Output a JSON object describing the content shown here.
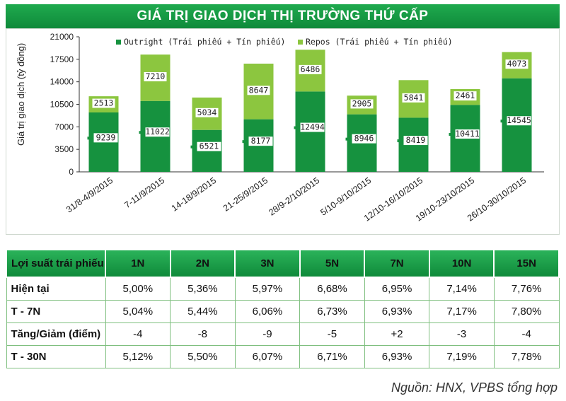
{
  "title": "GIÁ TRỊ GIAO DỊCH THỊ TRƯỜNG THỨ CẤP",
  "colors": {
    "outright": "#16923f",
    "repos": "#8cc63f",
    "title_bg": "#1aa24a",
    "header_bg": "#1e9c47"
  },
  "chart_data": {
    "type": "bar",
    "stacked": true,
    "ylabel": "Giá trị giao dịch (tỷ đồng)",
    "ylim": [
      0,
      21000
    ],
    "yticks": [
      0,
      3500,
      7000,
      10500,
      14000,
      17500,
      21000
    ],
    "categories": [
      "31/8-4/9/2015",
      "7-11/9/2015",
      "14-18/9/2015",
      "21-25/9/2015",
      "28/9-2/10/2015",
      "5/10-9/10/2015",
      "12/10-16/10/2015",
      "19/10-23/10/2015",
      "26/10-30/10/2015"
    ],
    "series": [
      {
        "name": "Outright (Trái phiếu + Tín phiếu)",
        "values": [
          9239,
          11022,
          6521,
          8177,
          12494,
          8946,
          8419,
          10411,
          14545
        ]
      },
      {
        "name": "Repos (Trái phiếu + Tín phiếu)",
        "values": [
          2513,
          7210,
          5034,
          8647,
          6486,
          2905,
          5841,
          2461,
          4073
        ]
      }
    ],
    "legend_position": "top"
  },
  "table": {
    "headers": [
      "Lợi suất trái phiếu",
      "1N",
      "2N",
      "3N",
      "5N",
      "7N",
      "10N",
      "15N"
    ],
    "rows": [
      [
        "Hiện tại",
        "5,00%",
        "5,36%",
        "5,97%",
        "6,68%",
        "6,95%",
        "7,14%",
        "7,76%"
      ],
      [
        "T - 7N",
        "5,04%",
        "5,44%",
        "6,06%",
        "6,73%",
        "6,93%",
        "7,17%",
        "7,80%"
      ],
      [
        "Tăng/Giảm (điểm)",
        "-4",
        "-8",
        "-9",
        "-5",
        "+2",
        "-3",
        "-4"
      ],
      [
        "T - 30N",
        "5,12%",
        "5,50%",
        "6,07%",
        "6,71%",
        "6,93%",
        "7,19%",
        "7,78%"
      ]
    ]
  },
  "source": "Nguồn: HNX, VPBS tổng hợp"
}
